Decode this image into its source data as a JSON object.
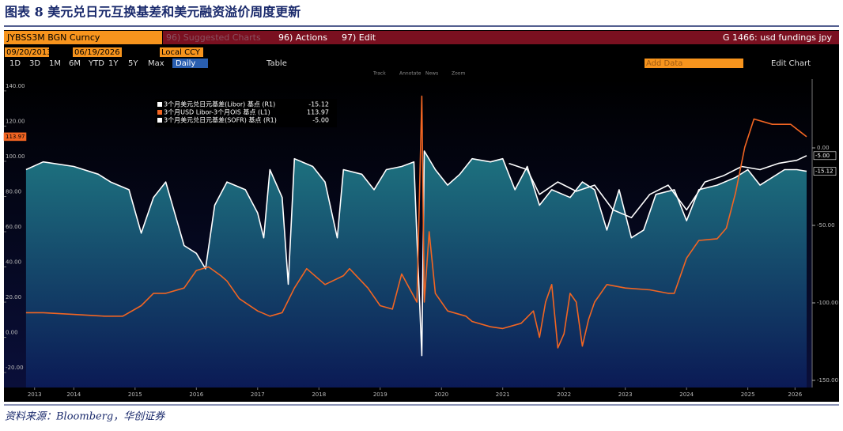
{
  "header": {
    "title": "图表 8 美元兑日元互换基差和美元融资溢价周度更新"
  },
  "footer": {
    "source": "资料来源：Bloomberg，华创证券"
  },
  "ui": {
    "ticker": "JYBSS3M BGN Curncy",
    "suggested": "96) Suggested Charts",
    "actions": "96) Actions",
    "edit": "97) Edit",
    "chart_name": "G 1466: usd fundings jpy",
    "start_date": "09/20/2013",
    "end_date": "06/19/2026",
    "currency": "Local CCY",
    "ranges": [
      "1D",
      "3D",
      "1M",
      "6M",
      "YTD",
      "1Y",
      "5Y",
      "Max"
    ],
    "period": "Daily",
    "table": "Table",
    "add_data": "Add Data",
    "edit_chart": "Edit Chart",
    "tools": [
      "Track",
      "Annotate",
      "News",
      "Zoom"
    ]
  },
  "chart_data": {
    "type": "line",
    "xlim": [
      2013.36,
      2026.55
    ],
    "xticks": [
      {
        "value": 2013.86,
        "label": "2013"
      },
      {
        "value": 2014.5,
        "label": "2014"
      },
      {
        "value": 2015.5,
        "label": "2015"
      },
      {
        "value": 2016.5,
        "label": "2016"
      },
      {
        "value": 2017.5,
        "label": "2017"
      },
      {
        "value": 2018.5,
        "label": "2018"
      },
      {
        "value": 2019.5,
        "label": "2019"
      },
      {
        "value": 2020.5,
        "label": "2020"
      },
      {
        "value": 2021.5,
        "label": "2021"
      },
      {
        "value": 2022.5,
        "label": "2022"
      },
      {
        "value": 2023.5,
        "label": "2023"
      },
      {
        "value": 2024.5,
        "label": "2024"
      },
      {
        "value": 2025.5,
        "label": "2025"
      },
      {
        "value": 2026.27,
        "label": "2026"
      }
    ],
    "ylim": [
      -28.5,
      146.7
    ],
    "yticks": [
      {
        "value": -20,
        "label": "-20.00"
      },
      {
        "value": 0,
        "label": "0.00"
      },
      {
        "value": 20,
        "label": "20.00"
      },
      {
        "value": 40,
        "label": "40.00"
      },
      {
        "value": 60,
        "label": "60.00"
      },
      {
        "value": 80,
        "label": "80.00"
      },
      {
        "value": 100,
        "label": "100.00"
      },
      {
        "value": 120,
        "label": "120.00"
      },
      {
        "value": 140,
        "label": "140.00"
      }
    ],
    "y2lim": [
      -154.6,
      44.4
    ],
    "y2ticks": [
      {
        "value": 0,
        "label": "0.00"
      },
      {
        "value": -50,
        "label": "-50.00"
      },
      {
        "value": -100,
        "label": "-100.00"
      },
      {
        "value": -150,
        "label": "-150.00"
      }
    ],
    "series": [
      {
        "name": "3个月美元兑日元基差(Libor) 基点 (R1)",
        "color": "#ffffff",
        "axis": "y2",
        "fill": true,
        "x": [
          2013.72,
          2014.0,
          2014.5,
          2014.9,
          2015.1,
          2015.4,
          2015.6,
          2015.8,
          2016.0,
          2016.3,
          2016.5,
          2016.65,
          2016.8,
          2017.0,
          2017.3,
          2017.5,
          2017.6,
          2017.7,
          2017.9,
          2018.0,
          2018.1,
          2018.4,
          2018.6,
          2018.8,
          2018.9,
          2019.2,
          2019.4,
          2019.6,
          2019.85,
          2020.05,
          2020.1,
          2020.18,
          2020.22,
          2020.4,
          2020.6,
          2020.8,
          2021.0,
          2021.3,
          2021.5,
          2021.7,
          2021.9,
          2022.1,
          2022.3,
          2022.6,
          2022.8,
          2023.0,
          2023.2,
          2023.4,
          2023.6,
          2023.8,
          2024.0,
          2024.3,
          2024.5,
          2024.7,
          2025.0,
          2025.3,
          2025.5,
          2025.7,
          2025.9,
          2026.1,
          2026.3,
          2026.46
        ],
        "values": [
          -14,
          -9,
          -12,
          -17,
          -22,
          -27,
          -55,
          -32,
          -22,
          -63,
          -68,
          -78,
          -37,
          -22,
          -27,
          -42,
          -58,
          -14,
          -32,
          -88,
          -7,
          -12,
          -22,
          -58,
          -14,
          -17,
          -27,
          -14,
          -12,
          -9,
          -58,
          -134,
          -2,
          -14,
          -24,
          -17,
          -7,
          -9,
          -7,
          -27,
          -12,
          -37,
          -27,
          -32,
          -22,
          -27,
          -53,
          -27,
          -58,
          -53,
          -30,
          -27,
          -47,
          -27,
          -24,
          -19,
          -14,
          -24,
          -19,
          -14,
          -14,
          -15.12
        ]
      },
      {
        "name": "3个月USD Libor-3个月OIS 基点 (L1)",
        "color": "#f26522",
        "axis": "y",
        "x": [
          2013.72,
          2014.0,
          2014.5,
          2015.0,
          2015.3,
          2015.6,
          2015.8,
          2016.0,
          2016.3,
          2016.5,
          2016.7,
          2016.9,
          2017.0,
          2017.2,
          2017.5,
          2017.7,
          2017.9,
          2018.1,
          2018.3,
          2018.6,
          2018.9,
          2019.0,
          2019.3,
          2019.5,
          2019.7,
          2019.85,
          2020.1,
          2020.18,
          2020.22,
          2020.3,
          2020.4,
          2020.6,
          2020.9,
          2021.0,
          2021.3,
          2021.5,
          2021.8,
          2022.0,
          2022.1,
          2022.2,
          2022.3,
          2022.4,
          2022.5,
          2022.6,
          2022.7,
          2022.8,
          2022.9,
          2023.0,
          2023.2,
          2023.5,
          2023.9,
          2024.2,
          2024.3,
          2024.5,
          2024.7,
          2025.0,
          2025.15,
          2025.3,
          2025.45,
          2025.6,
          2025.9,
          2026.2,
          2026.46
        ],
        "values": [
          14,
          14,
          13,
          12,
          12,
          18,
          25,
          25,
          28,
          38,
          40,
          35,
          32,
          22,
          15,
          12,
          14,
          28,
          39,
          30,
          35,
          39,
          28,
          18,
          16,
          36,
          20,
          137,
          20,
          60,
          25,
          15,
          12,
          9,
          6,
          5,
          8,
          15,
          0,
          20,
          30,
          -6,
          2,
          25,
          20,
          -5,
          10,
          20,
          30,
          28,
          27,
          25,
          25,
          45,
          55,
          56,
          62,
          82,
          108,
          124,
          121,
          121,
          113.97
        ]
      },
      {
        "name": "3个月美元兑日元基差(SOFR) 基点 (R1)",
        "color": "#ffffff",
        "axis": "y2",
        "x": [
          2021.6,
          2021.9,
          2022.1,
          2022.4,
          2022.7,
          2023.0,
          2023.3,
          2023.6,
          2023.9,
          2024.2,
          2024.5,
          2024.8,
          2025.1,
          2025.4,
          2025.7,
          2026.0,
          2026.3,
          2026.46
        ],
        "values": [
          -10,
          -14,
          -30,
          -22,
          -28,
          -24,
          -40,
          -45,
          -30,
          -24,
          -40,
          -22,
          -18,
          -12,
          -14,
          -10,
          -8,
          -5
        ],
        "value_labels": [
          null,
          null,
          null,
          null,
          null,
          null,
          null,
          null,
          null,
          null,
          null,
          null,
          null,
          null,
          null,
          null,
          null,
          "-5.00"
        ]
      }
    ]
  }
}
